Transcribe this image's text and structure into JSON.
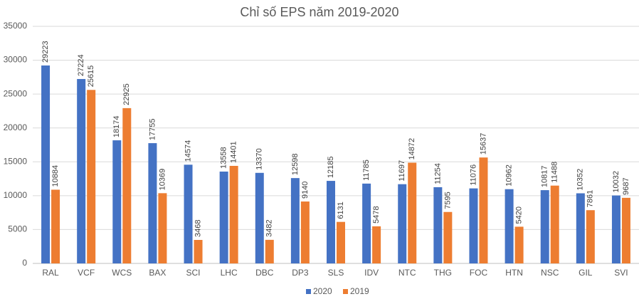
{
  "chart_data": {
    "type": "bar",
    "title": "Chỉ số EPS năm 2019-2020",
    "categories": [
      "RAL",
      "VCF",
      "WCS",
      "BAX",
      "SCI",
      "LHC",
      "DBC",
      "DP3",
      "SLS",
      "IDV",
      "NTC",
      "THG",
      "FOC",
      "HTN",
      "NSC",
      "GIL",
      "SVI"
    ],
    "series": [
      {
        "name": "2020",
        "color": "#4472c4",
        "values": [
          29223,
          27224,
          18174,
          17755,
          14574,
          13558,
          13370,
          12598,
          12185,
          11785,
          11697,
          11254,
          11076,
          10962,
          10817,
          10352,
          10032
        ]
      },
      {
        "name": "2019",
        "color": "#ed7d31",
        "values": [
          10884,
          25615,
          22925,
          10369,
          3468,
          14401,
          3482,
          9140,
          6131,
          5478,
          14872,
          7595,
          15637,
          5420,
          11488,
          7861,
          9687
        ]
      }
    ],
    "ylim": [
      0,
      35000
    ],
    "yticks": [
      0,
      5000,
      10000,
      15000,
      20000,
      25000,
      30000,
      35000
    ],
    "grid": true,
    "legend": "bottom"
  }
}
